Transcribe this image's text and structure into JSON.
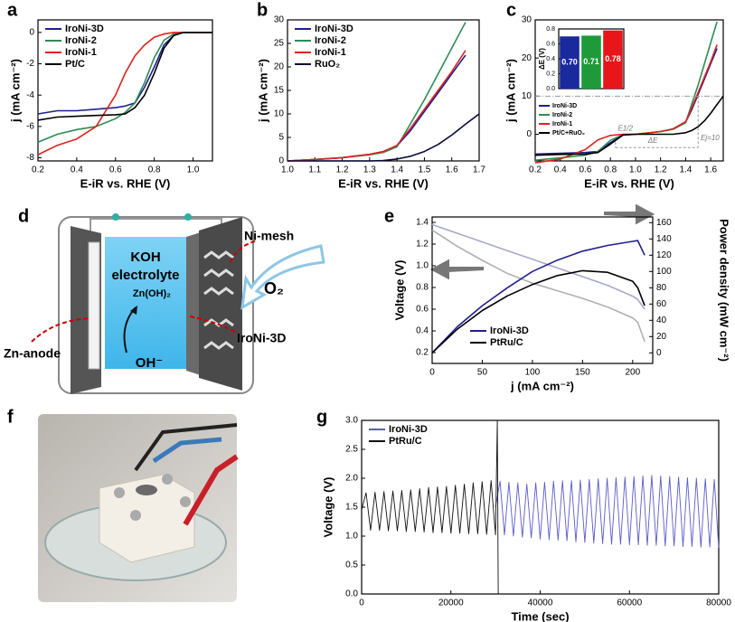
{
  "panel_labels": [
    "a",
    "b",
    "c",
    "d",
    "e",
    "f",
    "g"
  ],
  "diagram": {
    "electrolyte_1": "KOH",
    "electrolyte_2": "electrolyte",
    "product": "Zn(OH)₂",
    "gas": "O₂",
    "mesh": "Ni-mesh",
    "anode": "Zn-anode",
    "cathode": "IroNi-3D",
    "ion": "OH⁻"
  },
  "chart_data": [
    {
      "type": "line",
      "xlabel": "E-iR vs. RHE (V)",
      "ylabel": "j (mA cm⁻²)",
      "legend": "upper left",
      "x": [
        0.2,
        0.3,
        0.4,
        0.5,
        0.6,
        0.65,
        0.7,
        0.75,
        0.8,
        0.85,
        0.9,
        0.95,
        1.0,
        1.1
      ],
      "xlim": [
        0.2,
        1.1
      ],
      "xticks": [
        0.2,
        0.4,
        0.6,
        0.8,
        {
          "value": 1,
          "label": "1.0"
        }
      ],
      "ylim": [
        -8.2,
        0.8
      ],
      "yticks": [
        0,
        -2,
        -4,
        -6,
        -8
      ],
      "series": [
        {
          "name": "IroNi-3D",
          "color": "#1f1f8f",
          "values": [
            -5.2,
            -5.0,
            -5.0,
            -4.9,
            -4.8,
            -4.7,
            -4.5,
            -3.5,
            -2.2,
            -0.8,
            -0.2,
            0,
            0,
            0
          ]
        },
        {
          "name": "IroNi-2",
          "color": "#2e8b57",
          "values": [
            -7.0,
            -6.5,
            -6.2,
            -6.0,
            -5.5,
            -5.1,
            -4.5,
            -3.2,
            -1.6,
            -0.5,
            -0.1,
            0,
            0,
            0
          ]
        },
        {
          "name": "IroNi-1",
          "color": "#e0201c",
          "values": [
            -7.8,
            -7.2,
            -6.8,
            -6.0,
            -4.0,
            -2.6,
            -1.5,
            -0.8,
            -0.3,
            -0.1,
            0,
            0,
            0,
            0
          ]
        },
        {
          "name": "Pt/C",
          "color": "#000000",
          "values": [
            -5.6,
            -5.4,
            -5.35,
            -5.3,
            -5.25,
            -5.2,
            -4.8,
            -4.0,
            -2.6,
            -1.0,
            -0.2,
            0,
            0,
            0
          ]
        }
      ]
    },
    {
      "type": "line",
      "xlabel": "E-iR vs. RHE (V)",
      "ylabel": "j (mA cm⁻²)",
      "legend": "upper left",
      "x": [
        1.0,
        1.1,
        1.2,
        1.3,
        1.35,
        1.4,
        1.45,
        1.5,
        1.55,
        1.6,
        1.65,
        1.7
      ],
      "xlim": [
        1.0,
        1.7
      ],
      "xticks": [
        {
          "value": 1,
          "label": "1.0"
        },
        1.1,
        1.2,
        1.3,
        1.4,
        1.5,
        1.6,
        1.7
      ],
      "ylim": [
        0,
        30
      ],
      "yticks": [
        0,
        5,
        10,
        15,
        20,
        25,
        30
      ],
      "series": [
        {
          "name": "IroNi-3D",
          "color": "#1f1f8f",
          "values": [
            0,
            0.3,
            0.7,
            1.4,
            2.0,
            3.2,
            6.5,
            10.5,
            14.5,
            18.5,
            22.5,
            null
          ]
        },
        {
          "name": "IroNi-2",
          "color": "#2e8b57",
          "values": [
            0,
            0.3,
            0.7,
            1.3,
            1.8,
            3.0,
            8,
            13,
            18.5,
            24,
            29.5,
            null
          ]
        },
        {
          "name": "IroNi-1",
          "color": "#e0201c",
          "values": [
            0,
            0.3,
            0.7,
            1.4,
            2.0,
            3.3,
            7,
            11,
            15,
            19,
            23.5,
            null
          ]
        },
        {
          "name": "RuO₂",
          "color": "#0a0a3a",
          "values": [
            0,
            0,
            0,
            0,
            0.1,
            0.4,
            1.0,
            2,
            3.5,
            5.5,
            7.8,
            10
          ]
        }
      ]
    },
    {
      "type": "line",
      "xlabel": "E-iR vs. RHE (V)",
      "ylabel": "j (mA cm⁻²)",
      "legend": "middle left",
      "annotations": [
        "E1/2",
        "ΔE",
        "Ej=10"
      ],
      "x": [
        0.2,
        0.4,
        0.6,
        0.7,
        0.8,
        0.9,
        1.0,
        1.2,
        1.3,
        1.4,
        1.45,
        1.5,
        1.55,
        1.6,
        1.65,
        1.7
      ],
      "xlim": [
        0.2,
        1.7
      ],
      "xticks": [
        0.2,
        0.4,
        0.6,
        0.8,
        {
          "value": 1,
          "label": "1.0"
        },
        1.2,
        1.4,
        1.6
      ],
      "ylim": [
        -7,
        30
      ],
      "yticks": [
        0,
        10,
        20,
        30
      ],
      "series": [
        {
          "name": "IroNi-3D",
          "color": "#1f1f8f",
          "values": [
            -5.2,
            -5.0,
            -4.8,
            -4.5,
            -2.2,
            -0.2,
            0,
            0.7,
            1.4,
            3.2,
            6.5,
            10.5,
            14.5,
            18.5,
            22.5,
            null
          ]
        },
        {
          "name": "IroNi-2",
          "color": "#2e8b57",
          "values": [
            -6.8,
            -6.2,
            -5.5,
            -4.5,
            -1.6,
            -0.1,
            0,
            0.7,
            1.3,
            3.0,
            8,
            13,
            18.5,
            24,
            29.5,
            null
          ]
        },
        {
          "name": "IroNi-1",
          "color": "#e0201c",
          "values": [
            -7.5,
            -6.5,
            -4.0,
            -1.5,
            -0.3,
            0,
            0,
            0.7,
            1.4,
            3.3,
            7,
            11,
            15,
            19,
            23.5,
            null
          ]
        },
        {
          "name": "Pt/C+RuO₂",
          "color": "#000000",
          "values": [
            -5.5,
            -5.3,
            -5.2,
            -4.8,
            -2.6,
            -0.2,
            0,
            0,
            0,
            0.4,
            1.0,
            2,
            3.5,
            5.5,
            7.8,
            10
          ]
        }
      ]
    },
    {
      "type": "bar",
      "ylabel": "ΔE (V)",
      "values": [
        0.7,
        0.71,
        0.78
      ],
      "value_labels": [
        "0.70",
        "0.71",
        "0.78"
      ],
      "colors": [
        "#1a2a9c",
        "#1f9a3a",
        "#e8161a"
      ],
      "ylim": [
        0,
        0.8
      ],
      "yticks": [
        {
          "value": 0,
          "label": "0.0"
        },
        0.2,
        0.4,
        0.6,
        0.8
      ]
    },
    {
      "type": "line",
      "xlabel": "j (mA cm⁻²)",
      "ylabel": "Voltage (V)",
      "y2label": "Power density (mW cm⁻²)",
      "legend": "lower center",
      "x": [
        0,
        25,
        50,
        75,
        100,
        125,
        150,
        175,
        200,
        205,
        212
      ],
      "xlim": [
        0,
        220
      ],
      "xticks": [
        0,
        50,
        100,
        150,
        200
      ],
      "ylim": [
        0.1,
        1.45
      ],
      "yticks": [
        0.2,
        0.4,
        0.6,
        0.8,
        {
          "value": 1,
          "label": "1.0"
        },
        1.2,
        1.4
      ],
      "y2lim": [
        -13,
        167
      ],
      "y2ticks": [
        0,
        20,
        40,
        60,
        80,
        100,
        120,
        140,
        160
      ],
      "series": [
        {
          "color": "#a8a8cc",
          "axis": "y",
          "values": [
            1.38,
            1.3,
            1.22,
            1.14,
            1.06,
            0.98,
            0.9,
            0.82,
            0.72,
            0.69,
            0.6
          ]
        },
        {
          "color": "#b0b0b0",
          "axis": "y",
          "values": [
            1.33,
            1.18,
            1.05,
            0.93,
            0.84,
            0.77,
            0.7,
            0.62,
            0.52,
            0.48,
            0.3
          ]
        },
        {
          "name": "IroNi-3D",
          "color": "#1f1f8f",
          "axis": "y2",
          "values": [
            0,
            32,
            58,
            80,
            100,
            114,
            125,
            132,
            137,
            138,
            120
          ]
        },
        {
          "name": "PtRu/C",
          "color": "#000000",
          "axis": "y2",
          "values": [
            0,
            29,
            52,
            70,
            84,
            95,
            101,
            99,
            88,
            80,
            58
          ]
        }
      ]
    },
    {
      "type": "line",
      "xlabel": "Time (sec)",
      "ylabel": "Voltage (V)",
      "legend": "upper left",
      "xlim": [
        0,
        80000
      ],
      "xticks": [
        0,
        20000,
        40000,
        60000,
        80000
      ],
      "ylim": [
        0,
        3
      ],
      "yticks": [
        {
          "value": 0,
          "label": "0.0"
        },
        0.5,
        {
          "value": 1,
          "label": "1.0"
        },
        1.5,
        {
          "value": 2,
          "label": "2.0"
        },
        2.5,
        {
          "value": 3,
          "label": "3.0"
        }
      ],
      "series": [
        {
          "name": "IroNi-3D",
          "color": "#5a5acc",
          "x": [
            30000,
            31000,
            32000,
            33000,
            34000,
            35000,
            36000,
            37000,
            38000,
            39000,
            40000,
            41000,
            42000,
            43000,
            44000,
            45000,
            46000,
            47000,
            48000,
            49000,
            50000,
            51000,
            52000,
            53000,
            54000,
            55000,
            56000,
            57000,
            58000,
            59000,
            60000,
            61000,
            62000,
            63000,
            64000,
            65000,
            66000,
            67000,
            68000,
            69000,
            70000,
            71000,
            72000,
            73000,
            74000,
            75000,
            76000,
            77000,
            78000,
            79000,
            80000
          ],
          "values": [
            1.5,
            1.95,
            1.02,
            1.93,
            1.0,
            1.92,
            0.98,
            1.9,
            0.97,
            1.92,
            0.95,
            1.93,
            0.94,
            1.95,
            0.93,
            1.96,
            0.92,
            1.96,
            0.9,
            1.97,
            0.89,
            1.98,
            0.88,
            1.99,
            0.87,
            2.0,
            0.86,
            2.01,
            0.86,
            2.02,
            0.85,
            2.03,
            0.85,
            2.04,
            0.84,
            2.05,
            0.84,
            2.04,
            0.83,
            2.03,
            0.83,
            2.02,
            0.82,
            2.01,
            0.82,
            2.0,
            0.81,
            1.99,
            0.81,
            1.98,
            0.8
          ]
        },
        {
          "name": "PtRu/C",
          "color": "#111111",
          "x": [
            0,
            1000,
            2000,
            3000,
            4000,
            5000,
            6000,
            7000,
            8000,
            9000,
            10000,
            11000,
            12000,
            13000,
            14000,
            15000,
            16000,
            17000,
            18000,
            19000,
            20000,
            21000,
            22000,
            23000,
            24000,
            25000,
            26000,
            27000,
            28000,
            29000,
            30000,
            30400,
            30600
          ],
          "values": [
            1.45,
            1.75,
            1.1,
            1.76,
            1.1,
            1.77,
            1.09,
            1.78,
            1.09,
            1.79,
            1.08,
            1.8,
            1.08,
            1.82,
            1.07,
            1.84,
            1.06,
            1.85,
            1.06,
            1.86,
            1.05,
            1.88,
            1.05,
            1.9,
            1.04,
            1.92,
            1.04,
            1.94,
            1.03,
            1.96,
            1.02,
            3.0,
            0.0
          ]
        }
      ]
    }
  ]
}
